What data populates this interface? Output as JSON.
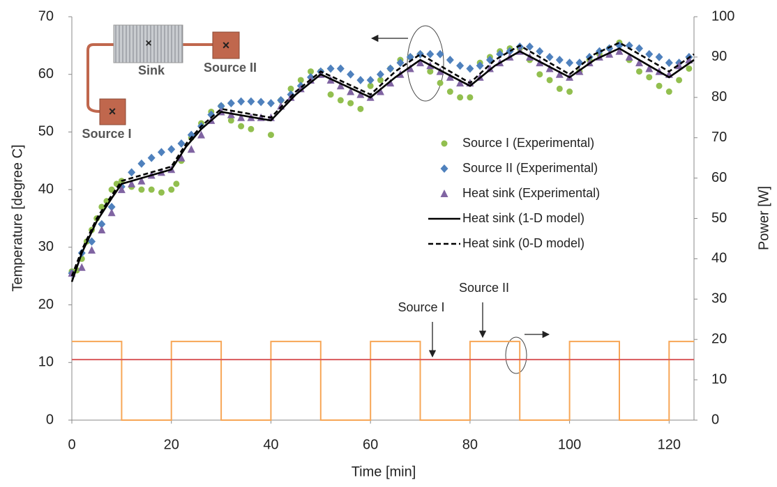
{
  "chart_data": {
    "type": "line",
    "xlabel": "Time [min]",
    "ylabel": "Temperature [degree C]",
    "y2label": "Power [W]",
    "xlim": [
      0,
      125
    ],
    "xticks": [
      0,
      20,
      40,
      60,
      80,
      100,
      120
    ],
    "ylim": [
      0,
      70
    ],
    "yticks": [
      0,
      10,
      20,
      30,
      40,
      50,
      60,
      70
    ],
    "y2lim": [
      0,
      100
    ],
    "y2ticks": [
      0,
      10,
      20,
      30,
      40,
      50,
      60,
      70,
      80,
      90,
      100
    ],
    "series": [
      {
        "name": "Source I (Experimental)",
        "type": "scatter",
        "marker": "circle",
        "color": "#92bf4f",
        "x": [
          0,
          1,
          2,
          3,
          4,
          5,
          6,
          7,
          8,
          9,
          10,
          12,
          14,
          16,
          18,
          20,
          21,
          22,
          24,
          26,
          28,
          30,
          32,
          34,
          36,
          40,
          42,
          44,
          46,
          48,
          50,
          52,
          54,
          56,
          58,
          60,
          62,
          64,
          66,
          68,
          70,
          72,
          74,
          76,
          78,
          80,
          82,
          84,
          86,
          88,
          90,
          92,
          94,
          96,
          98,
          100,
          102,
          104,
          106,
          108,
          110,
          112,
          114,
          116,
          118,
          120,
          122,
          124
        ],
        "values": [
          25.8,
          26,
          28,
          31,
          33,
          35,
          37,
          38,
          40,
          41,
          41.5,
          40.5,
          40,
          40,
          39.5,
          40,
          41,
          45,
          49,
          51.5,
          53.5,
          54.5,
          52,
          51,
          50.5,
          49.5,
          55.5,
          57.5,
          59,
          60.5,
          60.5,
          56.5,
          55.5,
          55,
          54,
          58,
          59,
          61,
          62.5,
          63,
          63.5,
          60.5,
          58.5,
          57,
          56,
          56,
          62,
          63,
          64,
          64.5,
          64.5,
          62.5,
          60,
          59,
          57.5,
          57,
          60.5,
          62.5,
          63.5,
          64.5,
          65.5,
          62.5,
          60.5,
          59.5,
          58,
          57,
          59,
          61
        ]
      },
      {
        "name": "Source II (Experimental)",
        "type": "scatter",
        "marker": "diamond",
        "color": "#4f81bd",
        "x": [
          0,
          2,
          4,
          6,
          8,
          10,
          12,
          14,
          16,
          18,
          20,
          22,
          24,
          26,
          28,
          30,
          32,
          34,
          36,
          38,
          40,
          42,
          44,
          46,
          48,
          50,
          52,
          54,
          56,
          58,
          60,
          62,
          64,
          66,
          68,
          70,
          72,
          74,
          76,
          78,
          80,
          82,
          84,
          86,
          88,
          90,
          92,
          94,
          96,
          98,
          100,
          102,
          104,
          106,
          108,
          110,
          112,
          114,
          116,
          118,
          120,
          122,
          124
        ],
        "values": [
          25.5,
          29,
          31,
          34,
          37,
          40.5,
          43,
          44.5,
          45.5,
          46.5,
          47,
          48,
          49.5,
          51,
          53,
          54.5,
          55,
          55.3,
          55.3,
          55.2,
          55,
          55.5,
          56.5,
          58,
          59.5,
          60.5,
          61,
          61,
          60,
          59,
          59,
          60,
          61,
          62,
          63,
          63.5,
          63.5,
          63.5,
          62.5,
          61.5,
          61,
          61.5,
          62.5,
          63.5,
          64,
          64.8,
          64.8,
          64,
          63,
          62.5,
          62,
          62,
          63,
          64,
          64.5,
          65,
          65,
          64.5,
          63.5,
          63,
          62,
          62,
          63
        ]
      },
      {
        "name": "Heat sink (Experimental)",
        "type": "scatter",
        "marker": "triangle",
        "color": "#8064a2",
        "x": [
          0,
          2,
          4,
          6,
          8,
          10,
          12,
          14,
          16,
          18,
          20,
          22,
          24,
          26,
          28,
          30,
          32,
          34,
          36,
          38,
          40,
          42,
          44,
          46,
          48,
          50,
          52,
          54,
          56,
          58,
          60,
          62,
          64,
          66,
          68,
          70,
          72,
          74,
          76,
          78,
          80,
          82,
          84,
          86,
          88,
          90,
          92,
          94,
          96,
          98,
          100,
          102,
          104,
          106,
          108,
          110,
          112,
          114,
          116,
          118,
          120,
          122,
          124
        ],
        "values": [
          25.5,
          26.5,
          29.5,
          33,
          36,
          40,
          41,
          41.5,
          42.5,
          43,
          43.5,
          45.5,
          47,
          49.5,
          52,
          53.5,
          53,
          52.5,
          52.5,
          52.5,
          52.5,
          54.5,
          56,
          57.5,
          59,
          60,
          59,
          58,
          57,
          56.5,
          56,
          57,
          58.5,
          60,
          61,
          62,
          61.5,
          60.5,
          59.5,
          58.5,
          58.5,
          59.5,
          61,
          62,
          63,
          64,
          63,
          62,
          61,
          60,
          59.5,
          60.5,
          62,
          63,
          63.5,
          64,
          63,
          62,
          61,
          60.5,
          60,
          61.5,
          62.5
        ]
      },
      {
        "name": "Heat sink (1-D model)",
        "type": "line",
        "dash": "solid",
        "color": "#000000",
        "x": [
          0,
          2,
          5,
          8,
          10,
          20,
          23,
          26,
          30,
          40,
          45,
          50,
          60,
          65,
          70,
          80,
          85,
          90,
          100,
          105,
          110,
          120,
          125
        ],
        "values": [
          24,
          29,
          34.5,
          38.5,
          41,
          43.5,
          47.5,
          50.5,
          53.5,
          52,
          56.5,
          60,
          56,
          59.5,
          62.5,
          58,
          61.5,
          64,
          59.5,
          62.5,
          64.5,
          59.5,
          62.5
        ]
      },
      {
        "name": "Heat sink (0-D model)",
        "type": "line",
        "dash": "dashed",
        "color": "#000000",
        "x": [
          0,
          2,
          5,
          8,
          10,
          20,
          23,
          26,
          30,
          40,
          45,
          50,
          60,
          65,
          70,
          80,
          85,
          90,
          100,
          105,
          110,
          120,
          125
        ],
        "values": [
          25,
          29.5,
          35,
          39,
          41.5,
          44,
          48,
          51,
          54,
          52.5,
          57,
          60.5,
          56.5,
          60.5,
          63.5,
          58.5,
          62.5,
          65,
          60,
          63.5,
          65.5,
          60.5,
          63.5
        ]
      },
      {
        "type": "line",
        "dash": "solid",
        "color": "#f7a656",
        "axis": "y2",
        "x": [
          0,
          10,
          10,
          20,
          20,
          30,
          30,
          40,
          40,
          50,
          50,
          60,
          60,
          70,
          70,
          80,
          80,
          90,
          90,
          100,
          100,
          110,
          110,
          120,
          120,
          125
        ],
        "values": [
          19.5,
          19.5,
          0,
          0,
          19.5,
          19.5,
          0,
          0,
          19.5,
          19.5,
          0,
          0,
          19.5,
          19.5,
          0,
          0,
          19.5,
          19.5,
          0,
          0,
          19.5,
          19.5,
          0,
          0,
          19.5,
          19.5
        ]
      },
      {
        "type": "line",
        "dash": "solid",
        "color": "#d9595b",
        "axis": "y2",
        "x": [
          0,
          125
        ],
        "values": [
          15,
          15
        ]
      }
    ],
    "annotations": [
      "Source I",
      "Source II"
    ],
    "inset_labels": [
      "Sink",
      "Source II",
      "Source I"
    ]
  }
}
